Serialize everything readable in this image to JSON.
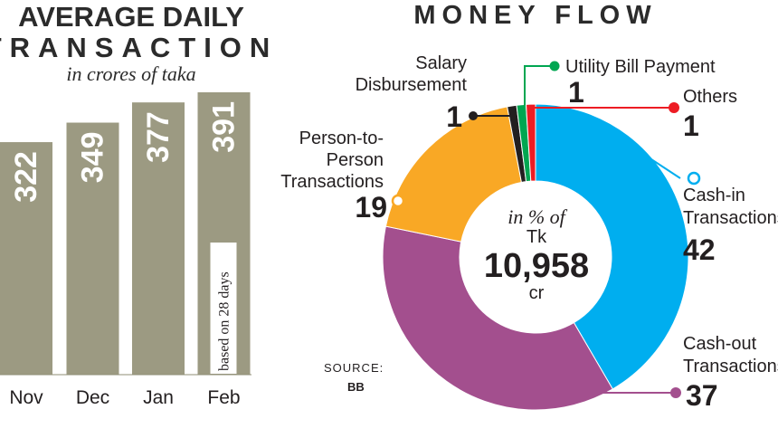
{
  "chart_data": [
    {
      "type": "bar",
      "title_line1": "AVERAGE DAILY",
      "title_line2": "TRANSACTION",
      "subtitle": "in crores of taka",
      "categories": [
        "Nov",
        "Dec",
        "Jan",
        "Feb"
      ],
      "values": [
        322,
        349,
        377,
        391
      ],
      "value_labels": [
        "322",
        "349",
        "377",
        "391"
      ],
      "annotation": "based on 28 days",
      "annotation_category": "Feb",
      "bar_color": "#9c9a82"
    },
    {
      "type": "pie",
      "title": "MONEY FLOW",
      "center": {
        "line1": "in % of",
        "line2": "Tk",
        "total": "10,958",
        "unit": "cr"
      },
      "slices": [
        {
          "key": "cashin",
          "label_lines": [
            "Cash-in",
            "Transactions"
          ],
          "value": 42,
          "value_label": "42",
          "color": "#00aeef"
        },
        {
          "key": "cashout",
          "label_lines": [
            "Cash-out",
            "Transactions"
          ],
          "value": 37,
          "value_label": "37",
          "color": "#a34f8e"
        },
        {
          "key": "p2p",
          "label_lines": [
            "Person-to-",
            "Person",
            "Transactions"
          ],
          "value": 19,
          "value_label": "19",
          "color": "#f9a825"
        },
        {
          "key": "salary",
          "label_lines": [
            "Salary",
            "Disbursement"
          ],
          "value": 1,
          "value_label": "1",
          "color": "#231f20"
        },
        {
          "key": "utility",
          "label_lines": [
            "Utility Bill Payment"
          ],
          "value": 1,
          "value_label": "1",
          "color": "#00a651"
        },
        {
          "key": "others",
          "label_lines": [
            "Others"
          ],
          "value": 1,
          "value_label": "1",
          "color": "#ed1c24"
        }
      ],
      "source_label": "SOURCE:",
      "source": "BB"
    }
  ]
}
